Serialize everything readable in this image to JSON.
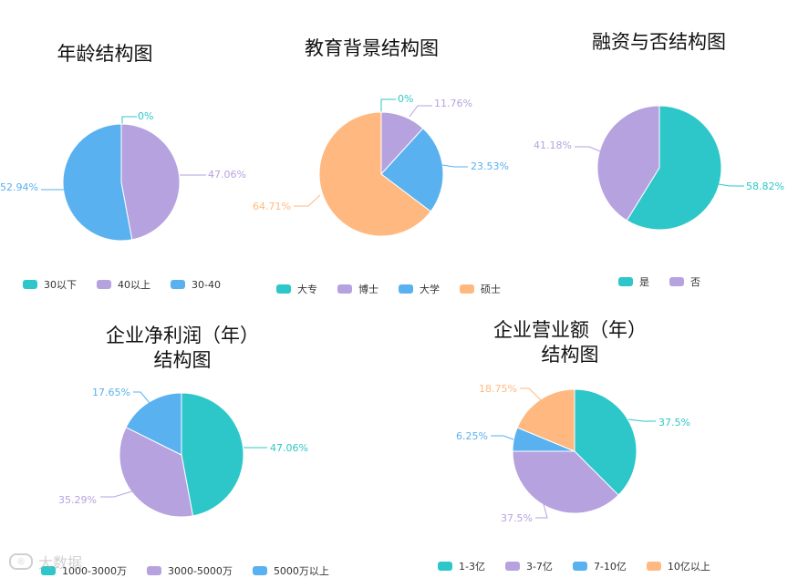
{
  "colors": {
    "teal": "#2EC7C9",
    "purple": "#B6A2DE",
    "blue": "#5AB1EF",
    "orange": "#FFB980"
  },
  "watermark": {
    "text": "大数据",
    "icon": "logo-icon"
  },
  "chart_data": [
    {
      "type": "pie",
      "title": "年龄结构图",
      "categories": [
        "30以下",
        "40以上",
        "30-40"
      ],
      "values": [
        0,
        47.06,
        52.94
      ],
      "labels": [
        "0%",
        "47.06%",
        "52.94%"
      ],
      "colors": [
        "#2EC7C9",
        "#B6A2DE",
        "#5AB1EF"
      ],
      "legend": "bottom"
    },
    {
      "type": "pie",
      "title": "教育背景结构图",
      "categories": [
        "大专",
        "博士",
        "大学",
        "硕士"
      ],
      "values": [
        0,
        11.76,
        23.53,
        64.71
      ],
      "labels": [
        "0%",
        "11.76%",
        "23.53%",
        "64.71%"
      ],
      "colors": [
        "#2EC7C9",
        "#B6A2DE",
        "#5AB1EF",
        "#FFB980"
      ],
      "legend": "bottom"
    },
    {
      "type": "pie",
      "title": "融资与否结构图",
      "categories": [
        "是",
        "否"
      ],
      "values": [
        58.82,
        41.18
      ],
      "labels": [
        "58.82%",
        "41.18%"
      ],
      "colors": [
        "#2EC7C9",
        "#B6A2DE"
      ],
      "legend": "bottom"
    },
    {
      "type": "pie",
      "title": "企业净利润（年）\n结构图",
      "categories": [
        "1000-3000万",
        "3000-5000万",
        "5000万以上"
      ],
      "values": [
        47.06,
        35.29,
        17.65
      ],
      "labels": [
        "47.06%",
        "35.29%",
        "17.65%"
      ],
      "colors": [
        "#2EC7C9",
        "#B6A2DE",
        "#5AB1EF"
      ],
      "legend": "bottom"
    },
    {
      "type": "pie",
      "title": "企业营业额（年）\n结构图",
      "categories": [
        "1-3亿",
        "3-7亿",
        "7-10亿",
        "10亿以上"
      ],
      "values": [
        37.5,
        37.5,
        6.25,
        18.75
      ],
      "labels": [
        "37.5%",
        "37.5%",
        "6.25%",
        "18.75%"
      ],
      "colors": [
        "#2EC7C9",
        "#B6A2DE",
        "#5AB1EF",
        "#FFB980"
      ],
      "legend": "bottom"
    }
  ]
}
